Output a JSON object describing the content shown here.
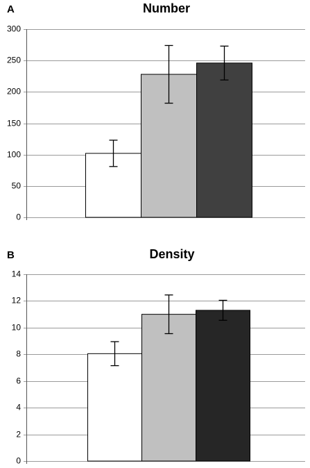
{
  "chart_data": [
    {
      "panel": "A",
      "type": "bar",
      "title": "Number",
      "ylim": [
        0,
        300
      ],
      "yticks": [
        0,
        50,
        100,
        150,
        200,
        250,
        300
      ],
      "grid": true,
      "bars": [
        {
          "value": 102,
          "error": 21,
          "color": "#ffffff"
        },
        {
          "value": 228,
          "error": 46,
          "color": "#c0c0c0"
        },
        {
          "value": 246,
          "error": 27,
          "color": "#404040"
        }
      ]
    },
    {
      "panel": "B",
      "type": "bar",
      "title": "Density",
      "ylim": [
        0,
        14
      ],
      "yticks": [
        0,
        2,
        4,
        6,
        8,
        10,
        12,
        14
      ],
      "grid": true,
      "bars": [
        {
          "value": 8.05,
          "error": 0.9,
          "color": "#ffffff"
        },
        {
          "value": 11.0,
          "error": 1.45,
          "color": "#c0c0c0"
        },
        {
          "value": 11.3,
          "error": 0.75,
          "color": "#262626"
        }
      ]
    }
  ]
}
